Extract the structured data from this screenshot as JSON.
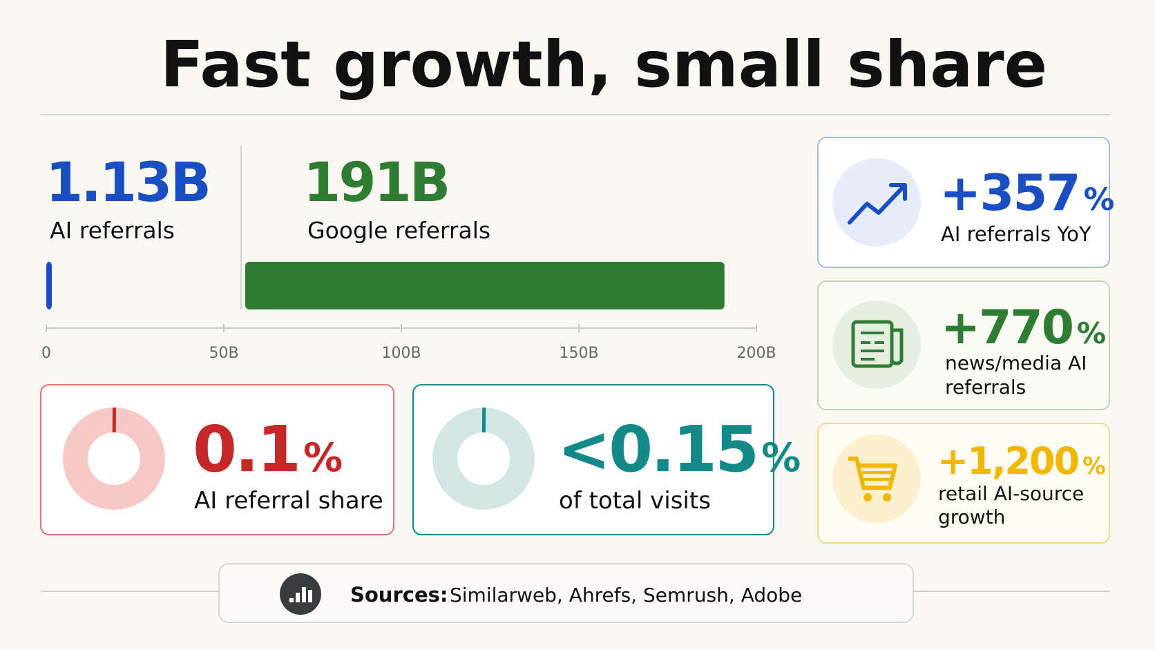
{
  "title": "Fast growth, small share",
  "chart_data": [
    {
      "type": "bar",
      "orientation": "horizontal",
      "categories": [
        "AI referrals",
        "Google referrals"
      ],
      "values": [
        1.13,
        191
      ],
      "value_labels": [
        "1.13B",
        "191B"
      ],
      "colors": [
        "#1a4fc4",
        "#2e7d32"
      ],
      "xlim": [
        0,
        200
      ],
      "xticks": [
        0,
        {
          "value": 50,
          "label": "50B"
        },
        {
          "value": 100,
          "label": "100B"
        },
        {
          "value": 150,
          "label": "150B"
        },
        {
          "value": 200,
          "label": "200B"
        }
      ]
    },
    {
      "type": "pie",
      "categories": [
        "AI referral share"
      ],
      "values": [
        0.1
      ],
      "value_labels": [
        "0.1%"
      ],
      "color": "#c62828",
      "track_color": "#f7c9c6"
    },
    {
      "type": "pie",
      "categories": [
        "of total visits"
      ],
      "values": [
        0.15
      ],
      "value_labels": [
        "<0.15%"
      ],
      "color": "#138a8a",
      "track_color": "#d3e6e3"
    }
  ],
  "cards": [
    {
      "value": "+357%",
      "label": "AI referrals YoY"
    },
    {
      "value": "+770%",
      "label": "news/media AI referrals"
    },
    {
      "value": "+1,200%",
      "label": "retail AI-source growth"
    }
  ],
  "sources": {
    "label": "Sources:",
    "text": "Similarweb, Ahrefs, Semrush, Adobe"
  }
}
